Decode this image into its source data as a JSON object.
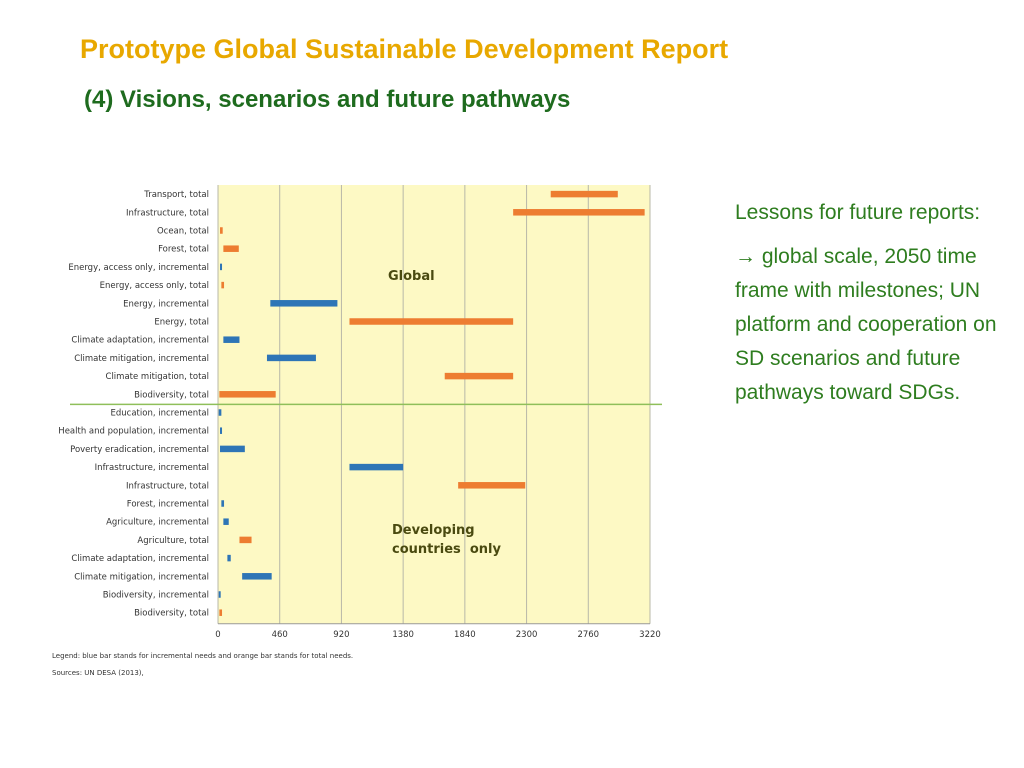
{
  "slide": {
    "title": "Prototype Global Sustainable Development Report",
    "subtitle": "(4) Visions, scenarios and future pathways",
    "lessons_heading": "Lessons for future reports:",
    "lessons_text": "→ global scale, 2050 time frame with milestones; UN platform and cooperation on SD scenarios and future pathways toward SDGs.",
    "legend_note": "Legend: blue bar stands for incremental needs and orange bar stands for total needs.",
    "sources": "Sources: UN DESA (2013),"
  },
  "colors": {
    "title": "#e8a800",
    "subtitle": "#1e6b1e",
    "lessons": "#2e7d1f",
    "plot_bg": "#fdf9c4",
    "incremental": "#2e75b6",
    "total": "#ed7d31",
    "separator": "#8fbf5a"
  },
  "chart_data": {
    "type": "bar",
    "orientation": "horizontal-range",
    "xlim": [
      0,
      3220
    ],
    "xticks": [
      0,
      460,
      920,
      1380,
      1840,
      2300,
      2760,
      3220
    ],
    "grid": "vertical",
    "annotations": [
      "Global",
      "Developing",
      "countries  only"
    ],
    "categories": [
      {
        "label": "Transport, total",
        "kind": "total",
        "range": [
          2480,
          2980
        ]
      },
      {
        "label": "Infrastructure, total",
        "kind": "total",
        "range": [
          2200,
          3180
        ]
      },
      {
        "label": "Ocean, total",
        "kind": "total",
        "range": [
          15,
          35
        ]
      },
      {
        "label": "Forest, total",
        "kind": "total",
        "range": [
          40,
          155
        ]
      },
      {
        "label": "Energy, access only, incremental",
        "kind": "incremental",
        "range": [
          15,
          30
        ]
      },
      {
        "label": "Energy, access only, total",
        "kind": "total",
        "range": [
          25,
          45
        ]
      },
      {
        "label": "Energy, incremental",
        "kind": "incremental",
        "range": [
          390,
          890
        ]
      },
      {
        "label": "Energy, total",
        "kind": "total",
        "range": [
          980,
          2200
        ]
      },
      {
        "label": "Climate adaptation, incremental",
        "kind": "incremental",
        "range": [
          40,
          160
        ]
      },
      {
        "label": "Climate mitigation, incremental",
        "kind": "incremental",
        "range": [
          365,
          730
        ]
      },
      {
        "label": "Climate mitigation, total",
        "kind": "total",
        "range": [
          1690,
          2200
        ]
      },
      {
        "label": "Biodiversity, total",
        "kind": "total",
        "range": [
          10,
          430
        ]
      },
      {
        "label": "Education, incremental",
        "kind": "incremental",
        "range": [
          5,
          25
        ]
      },
      {
        "label": "Health and population, incremental",
        "kind": "incremental",
        "range": [
          15,
          30
        ]
      },
      {
        "label": "Poverty eradication, incremental",
        "kind": "incremental",
        "range": [
          15,
          200
        ]
      },
      {
        "label": "Infrastructure, incremental",
        "kind": "incremental",
        "range": [
          980,
          1380
        ]
      },
      {
        "label": "Infrastructure, total",
        "kind": "total",
        "range": [
          1790,
          2290
        ]
      },
      {
        "label": "Forest, incremental",
        "kind": "incremental",
        "range": [
          25,
          45
        ]
      },
      {
        "label": "Agriculture, incremental",
        "kind": "incremental",
        "range": [
          40,
          80
        ]
      },
      {
        "label": "Agriculture, total",
        "kind": "total",
        "range": [
          160,
          250
        ]
      },
      {
        "label": "Climate adaptation, incremental",
        "kind": "incremental",
        "range": [
          70,
          95
        ]
      },
      {
        "label": "Climate mitigation, incremental",
        "kind": "incremental",
        "range": [
          180,
          400
        ]
      },
      {
        "label": "Biodiversity, incremental",
        "kind": "incremental",
        "range": [
          5,
          20
        ]
      },
      {
        "label": "Biodiversity, total",
        "kind": "total",
        "range": [
          10,
          30
        ]
      }
    ]
  }
}
